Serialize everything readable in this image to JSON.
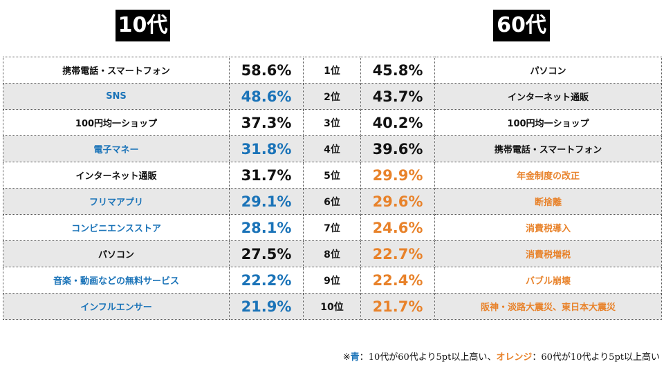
{
  "headers": {
    "left": "10代",
    "right": "60代"
  },
  "colors": {
    "blue": "#1a73b8",
    "orange": "#e8822a",
    "black": "#111111",
    "row_alt": "#e8e8e8"
  },
  "rows": [
    {
      "rank": "1位",
      "left_item": "携帯電話・スマートフォン",
      "left_pct": "58.6%",
      "left_color": "black",
      "right_pct": "45.8%",
      "right_item": "パソコン",
      "right_color": "black"
    },
    {
      "rank": "2位",
      "left_item": "SNS",
      "left_pct": "48.6%",
      "left_color": "blue",
      "right_pct": "43.7%",
      "right_item": "インターネット通販",
      "right_color": "black"
    },
    {
      "rank": "3位",
      "left_item": "100円均一ショップ",
      "left_pct": "37.3%",
      "left_color": "black",
      "right_pct": "40.2%",
      "right_item": "100円均一ショップ",
      "right_color": "black"
    },
    {
      "rank": "4位",
      "left_item": "電子マネー",
      "left_pct": "31.8%",
      "left_color": "blue",
      "right_pct": "39.6%",
      "right_item": "携帯電話・スマートフォン",
      "right_color": "black"
    },
    {
      "rank": "5位",
      "left_item": "インターネット通販",
      "left_pct": "31.7%",
      "left_color": "black",
      "right_pct": "29.9%",
      "right_item": "年金制度の改正",
      "right_color": "orange"
    },
    {
      "rank": "6位",
      "left_item": "フリマアプリ",
      "left_pct": "29.1%",
      "left_color": "blue",
      "right_pct": "29.6%",
      "right_item": "断捨離",
      "right_color": "orange"
    },
    {
      "rank": "7位",
      "left_item": "コンビニエンスストア",
      "left_pct": "28.1%",
      "left_color": "blue",
      "right_pct": "24.6%",
      "right_item": "消費税導入",
      "right_color": "orange"
    },
    {
      "rank": "8位",
      "left_item": "パソコン",
      "left_pct": "27.5%",
      "left_color": "black",
      "right_pct": "22.7%",
      "right_item": "消費税増税",
      "right_color": "orange"
    },
    {
      "rank": "9位",
      "left_item": "音楽・動画などの無料サービス",
      "left_pct": "22.2%",
      "left_color": "blue",
      "right_pct": "22.4%",
      "right_item": "バブル崩壊",
      "right_color": "orange"
    },
    {
      "rank": "10位",
      "left_item": "インフルエンサー",
      "left_pct": "21.9%",
      "left_color": "blue",
      "right_pct": "21.7%",
      "right_item": "阪神・淡路大震災、東日本大震災",
      "right_color": "orange"
    }
  ],
  "footnote": {
    "prefix": "※",
    "blue_label": "青",
    "blue_text": "：10代が60代より5pt以上高い、",
    "orange_label": "オレンジ",
    "orange_text": "：60代が10代より5pt以上高い"
  }
}
